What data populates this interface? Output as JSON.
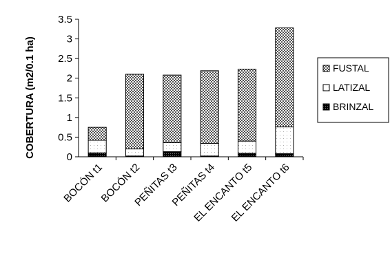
{
  "chart_data": {
    "type": "bar",
    "stacked": true,
    "title": "",
    "xlabel": "",
    "ylabel": "COBERTURA (m2/0.1 ha)",
    "ylim": [
      0,
      3.5
    ],
    "yticks": [
      "0",
      "0.5",
      "1",
      "1.5",
      "2",
      "2.5",
      "3",
      "3.5"
    ],
    "grid": false,
    "legend_position": "right",
    "categories": [
      "BOCÓN t1",
      "BOCÓN t2",
      "PEÑITAS t3",
      "PEÑITAS t4",
      "EL ENCANTO t5",
      "EL ENCANTO t6"
    ],
    "series": [
      {
        "name": "BRINZAL",
        "values": [
          0.1,
          0.02,
          0.13,
          0.02,
          0.09,
          0.08
        ],
        "color": "#111111",
        "pattern": "dense-dots-dark"
      },
      {
        "name": "LATIZAL",
        "values": [
          0.32,
          0.18,
          0.23,
          0.32,
          0.31,
          0.68
        ],
        "color": "#ffffff",
        "pattern": "sparse-dots-light"
      },
      {
        "name": "FUSTAL",
        "values": [
          0.33,
          1.9,
          1.72,
          1.85,
          1.83,
          2.52
        ],
        "color": "#999999",
        "pattern": "checkered"
      }
    ],
    "legend": [
      "FUSTAL",
      "LATIZAL",
      "BRINZAL"
    ]
  }
}
